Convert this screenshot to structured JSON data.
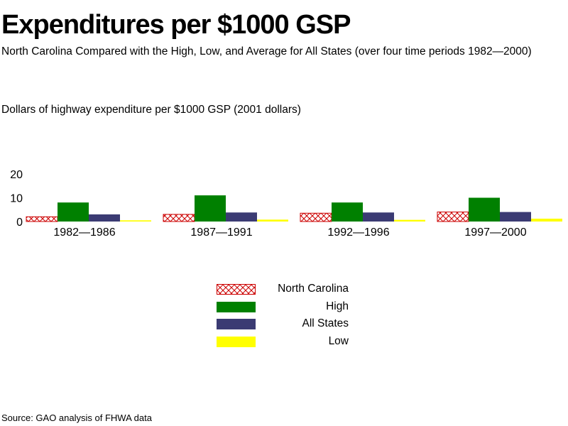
{
  "title": "Expenditures per $1000 GSP",
  "subtitle": "North Carolina Compared with the High, Low, and Average for All States (over four time periods 1982—2000)",
  "source": "Source: GAO analysis of FHWA data",
  "colors": {
    "north_carolina": "#cc0000",
    "high": "#008000",
    "all_states": "#3b3b73",
    "low": "#ffff00"
  },
  "chart_data": {
    "type": "bar",
    "title": "Expenditures per $1000 GSP",
    "ylabel": "Dollars of highway expenditure per $1000 GSP   (2001 dollars)",
    "xlabel": "",
    "categories": [
      "1982—1986",
      "1987—1991",
      "1992—1996",
      "1997—2000"
    ],
    "yticks": [
      "0",
      "10",
      "20"
    ],
    "ylim": [
      0,
      20
    ],
    "grid": false,
    "legend_position": "bottom-center",
    "series": [
      {
        "name": "North Carolina",
        "values": [
          2,
          3,
          3.5,
          4
        ],
        "pattern": "crosshatch",
        "color": "#cc0000"
      },
      {
        "name": "High",
        "values": [
          8,
          11,
          8,
          10
        ],
        "color": "#008000"
      },
      {
        "name": "All States",
        "values": [
          3,
          3.8,
          3.8,
          4
        ],
        "color": "#3b3b73"
      },
      {
        "name": "Low",
        "values": [
          0.5,
          0.8,
          0.7,
          1.2
        ],
        "color": "#ffff00"
      }
    ]
  }
}
